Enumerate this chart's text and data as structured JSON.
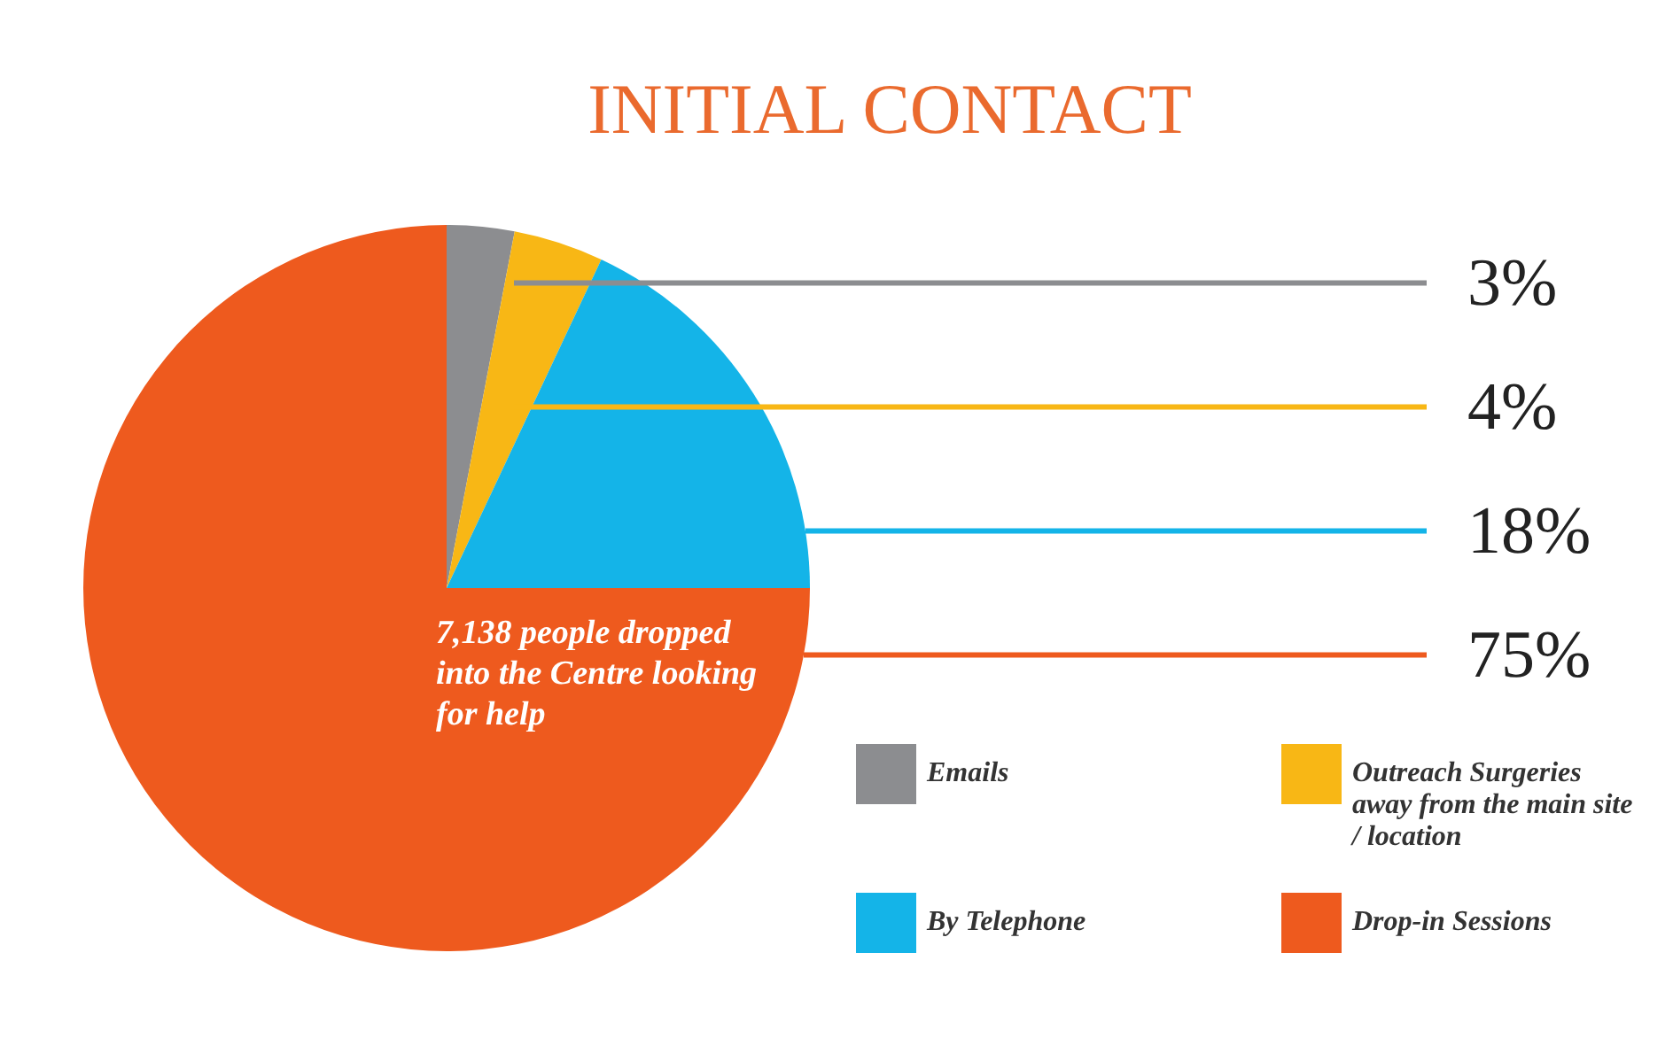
{
  "chart_data": {
    "type": "pie",
    "title": "INITIAL CONTACT",
    "categories": [
      "Emails",
      "Outreach Surgeries away from the main site / location",
      "By Telephone",
      "Drop-in Sessions"
    ],
    "values": [
      3,
      4,
      18,
      75
    ],
    "colors": [
      "#8c8d90",
      "#f8b715",
      "#14b4e8",
      "#ee5a1e"
    ],
    "value_labels": [
      "3%",
      "4%",
      "18%",
      "75%"
    ],
    "annotations": [
      "7,138 people dropped into the Centre looking for help"
    ],
    "legend": "bottom right"
  }
}
